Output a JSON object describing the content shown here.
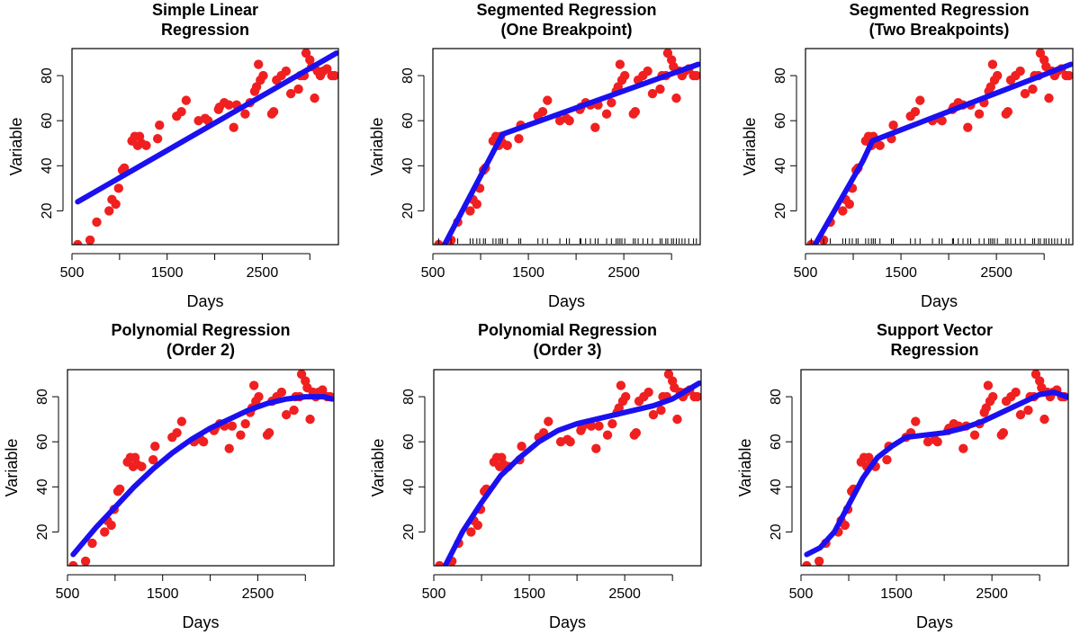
{
  "colors": {
    "points": "#f02020",
    "fit": "#1a10f0",
    "axis": "#000000"
  },
  "chart_data": [
    {
      "type": "scatter",
      "title": [
        "Simple Linear",
        "Regression"
      ],
      "xlabel": "Days",
      "ylabel": "Variable",
      "xlim": [
        500,
        3300
      ],
      "ylim": [
        5,
        92
      ],
      "xticks": [
        500,
        1500,
        2500
      ],
      "yticks": [
        20,
        40,
        60,
        80
      ],
      "rug": false,
      "fit": {
        "name": "fit",
        "x": [
          560,
          3280
        ],
        "y": [
          24,
          90
        ]
      }
    },
    {
      "type": "scatter",
      "title": [
        "Segmented Regression",
        "(One Breakpoint)"
      ],
      "xlabel": "Days",
      "ylabel": "Variable",
      "xlim": [
        500,
        3300
      ],
      "ylim": [
        5,
        92
      ],
      "xticks": [
        500,
        1500,
        2500
      ],
      "yticks": [
        20,
        40,
        60,
        80
      ],
      "rug": true,
      "fit": {
        "name": "fit",
        "x": [
          560,
          1230,
          3280
        ],
        "y": [
          0,
          54,
          85
        ]
      }
    },
    {
      "type": "scatter",
      "title": [
        "Segmented Regression",
        "(Two Breakpoints)"
      ],
      "xlabel": "Days",
      "ylabel": "Variable",
      "xlim": [
        500,
        3300
      ],
      "ylim": [
        5,
        92
      ],
      "xticks": [
        500,
        1500,
        2500
      ],
      "yticks": [
        20,
        40,
        60,
        80
      ],
      "rug": true,
      "fit": {
        "name": "fit",
        "x": [
          560,
          1100,
          1200,
          3280
        ],
        "y": [
          2,
          42,
          51,
          85
        ]
      }
    },
    {
      "type": "scatter",
      "title": [
        "Polynomial Regression",
        "(Order 2)"
      ],
      "xlabel": "Days",
      "ylabel": "Variable",
      "xlim": [
        500,
        3300
      ],
      "ylim": [
        5,
        92
      ],
      "xticks": [
        500,
        1500,
        2500
      ],
      "yticks": [
        20,
        40,
        60,
        80
      ],
      "rug": false,
      "fit": {
        "name": "fit",
        "x": [
          560,
          800,
          1000,
          1200,
          1400,
          1600,
          1800,
          2000,
          2200,
          2400,
          2600,
          2800,
          3000,
          3200,
          3280
        ],
        "y": [
          10,
          22,
          31,
          40,
          48,
          55,
          61,
          66,
          70,
          74,
          77,
          79,
          80,
          80,
          79
        ]
      }
    },
    {
      "type": "scatter",
      "title": [
        "Polynomial Regression",
        "(Order 3)"
      ],
      "xlabel": "Days",
      "ylabel": "Variable",
      "xlim": [
        500,
        3300
      ],
      "ylim": [
        5,
        92
      ],
      "xticks": [
        500,
        1500,
        2500
      ],
      "yticks": [
        20,
        40,
        60,
        80
      ],
      "rug": false,
      "fit": {
        "name": "fit",
        "x": [
          560,
          800,
          1000,
          1200,
          1400,
          1600,
          1800,
          2000,
          2200,
          2400,
          2600,
          2800,
          3000,
          3200,
          3280
        ],
        "y": [
          0,
          20,
          33,
          45,
          53,
          60,
          65,
          68,
          70,
          72,
          74,
          76,
          79,
          84,
          86
        ]
      }
    },
    {
      "type": "scatter",
      "title": [
        "Support Vector",
        "Regression"
      ],
      "xlabel": "Days",
      "ylabel": "Variable",
      "xlim": [
        500,
        3300
      ],
      "ylim": [
        5,
        92
      ],
      "xticks": [
        500,
        1500,
        2500
      ],
      "yticks": [
        20,
        40,
        60,
        80
      ],
      "rug": false,
      "fit": {
        "name": "fit",
        "x": [
          560,
          700,
          850,
          1000,
          1150,
          1300,
          1450,
          1600,
          1800,
          2000,
          2200,
          2400,
          2600,
          2800,
          3000,
          3150,
          3280
        ],
        "y": [
          10,
          13,
          20,
          32,
          44,
          53,
          58,
          62,
          63,
          64,
          66,
          69,
          73,
          77,
          81,
          82,
          80
        ]
      }
    }
  ],
  "points": {
    "x": [
      560,
      690,
      760,
      890,
      920,
      960,
      990,
      1030,
      1050,
      1130,
      1160,
      1190,
      1210,
      1230,
      1280,
      1400,
      1420,
      1600,
      1650,
      1700,
      1830,
      1900,
      1930,
      2040,
      2050,
      2100,
      2150,
      2200,
      2230,
      2320,
      2370,
      2420,
      2440,
      2460,
      2480,
      2510,
      2600,
      2620,
      2650,
      2700,
      2750,
      2800,
      2880,
      2900,
      2940,
      2960,
      3000,
      3020,
      3050,
      3080,
      3110,
      3140,
      3180,
      3230,
      3260
    ],
    "y": [
      5,
      7,
      15,
      20,
      25,
      23,
      30,
      38,
      39,
      51,
      53,
      49,
      53,
      50,
      49,
      52,
      58,
      62,
      64,
      69,
      60,
      61,
      60,
      65,
      66,
      68,
      67,
      57,
      67,
      63,
      68,
      73,
      75,
      85,
      78,
      80,
      63,
      64,
      78,
      80,
      82,
      72,
      74,
      80,
      80,
      90,
      87,
      84,
      70,
      82,
      80,
      82,
      83,
      80,
      80
    ]
  }
}
